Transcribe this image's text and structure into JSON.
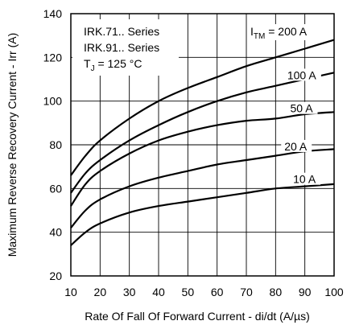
{
  "chart_data": {
    "type": "line",
    "xlabel": "Rate Of Fall Of Forward Current - di/dt (A/µs)",
    "ylabel": "Maximum Reverse Recovery Current - Irr (A)",
    "xlim": [
      10,
      100
    ],
    "ylim": [
      20,
      140
    ],
    "xticks": [
      10,
      20,
      30,
      40,
      50,
      60,
      70,
      80,
      90,
      100
    ],
    "yticks": [
      20,
      40,
      60,
      80,
      100,
      120,
      140
    ],
    "grid": true,
    "notes": {
      "line1": "IRK.71.. Series",
      "line2": "IRK.91.. Series",
      "tj_main": "T",
      "tj_sub": "J",
      "tj_rest": " = 125 °C"
    },
    "series_header": {
      "main": "I",
      "sub": "TM",
      "rest": " = 200 A"
    },
    "x": [
      10,
      15,
      20,
      30,
      40,
      50,
      60,
      70,
      80,
      90,
      100
    ],
    "series": [
      {
        "name": "200 A",
        "label": "",
        "values": [
          66,
          75,
          82,
          92,
          100,
          106,
          111,
          116,
          120,
          124,
          128
        ]
      },
      {
        "name": "100 A",
        "label": "100 A",
        "values": [
          58,
          67,
          73,
          82,
          89,
          95,
          100,
          104,
          107,
          110,
          113
        ]
      },
      {
        "name": "50 A",
        "label": "50 A",
        "values": [
          52,
          62,
          68,
          76,
          82,
          86,
          89,
          91,
          92,
          94,
          95
        ]
      },
      {
        "name": "20 A",
        "label": "20 A",
        "values": [
          42,
          50,
          55,
          61,
          65,
          68,
          71,
          73,
          75,
          77,
          78
        ]
      },
      {
        "name": "10 A",
        "label": "10 A",
        "values": [
          34,
          40,
          44,
          49,
          52,
          54,
          56,
          58,
          60,
          61,
          62
        ]
      }
    ]
  }
}
